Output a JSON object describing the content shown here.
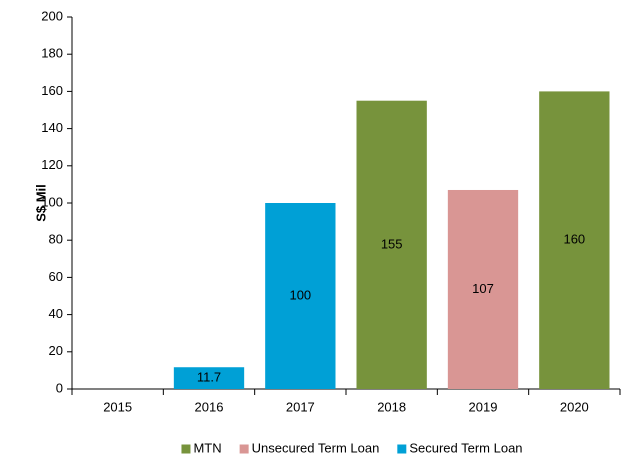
{
  "chart_data": {
    "type": "stacked_bar",
    "categories": [
      "2015",
      "2016",
      "2017",
      "2018",
      "2019",
      "2020"
    ],
    "series": [
      {
        "name": "MTN",
        "color": "#77933c",
        "values": [
          null,
          null,
          null,
          155,
          null,
          160
        ]
      },
      {
        "name": "Unsecured Term Loan",
        "color": "#d99694",
        "values": [
          null,
          null,
          null,
          null,
          107,
          null
        ]
      },
      {
        "name": "Secured Term Loan",
        "color": "#00a0d6",
        "values": [
          null,
          11.7,
          100,
          null,
          null,
          null
        ]
      }
    ],
    "ylabel": "S$ Mil",
    "ylim": [
      0,
      200
    ],
    "yticks": [
      0,
      20,
      40,
      60,
      80,
      100,
      120,
      140,
      160,
      180,
      200
    ],
    "legend": "bottom"
  }
}
